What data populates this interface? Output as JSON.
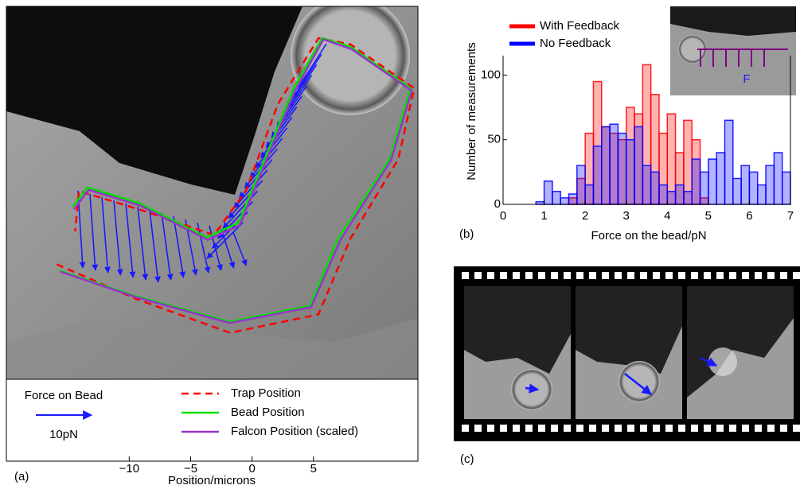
{
  "chart_data": [
    {
      "type": "line",
      "panel_label": "(a)",
      "xlabel": "Position/microns",
      "xlim": [
        -20,
        13.5
      ],
      "ylim": [
        -6,
        24.5
      ],
      "xticks": [
        {
          "value": -10,
          "label": "−10"
        },
        {
          "value": -5,
          "label": "−5"
        },
        0,
        5
      ],
      "scale_label": "Force on Bead",
      "scale_value_label": "10pN",
      "series": [
        {
          "name": "Trap Position",
          "color": "#ff0000",
          "dashed": true,
          "x": [
            -15.9,
            -9.5,
            -1.8,
            5.4,
            8.0,
            11.9,
            13.2,
            8.0,
            5.4,
            2.1,
            -0.5,
            -3.1,
            -8.9,
            -14.1,
            -14.4
          ],
          "values": [
            3.4,
            0.6,
            -2.2,
            -0.7,
            5.5,
            12.0,
            17.8,
            21.4,
            21.9,
            16.5,
            9.4,
            5.8,
            7.8,
            9.4,
            6.1
          ]
        },
        {
          "name": "Bead Position",
          "color": "#00e000",
          "dashed": false,
          "x": [
            -15.7,
            -9.5,
            -1.8,
            4.7,
            7.0,
            11.2,
            12.9,
            8.0,
            5.7,
            3.4,
            -1.1,
            -3.7,
            -9.2,
            -13.4,
            -14.6
          ],
          "values": [
            2.9,
            0.8,
            -1.3,
            0.0,
            5.5,
            12.0,
            17.8,
            21.2,
            21.9,
            17.8,
            6.8,
            5.6,
            8.4,
            9.7,
            8.1
          ]
        },
        {
          "name": "Falcon Position (scaled)",
          "color": "#9933cc",
          "dashed": false,
          "x": [
            -15.6,
            -9.4,
            -1.8,
            4.8,
            7.2,
            11.3,
            13.0,
            8.1,
            5.8,
            3.5,
            -1.0,
            -3.6,
            -9.1,
            -13.3,
            -14.5
          ],
          "values": [
            2.8,
            0.7,
            -1.4,
            -0.1,
            5.4,
            11.9,
            17.6,
            21.0,
            21.8,
            17.6,
            6.6,
            5.4,
            8.2,
            9.5,
            7.9
          ]
        }
      ]
    },
    {
      "type": "histogram",
      "panel_label": "(b)",
      "xlabel": "Force on the bead/pN",
      "ylabel": "Number of measurements",
      "inset_label": "F",
      "xlim": [
        0,
        7
      ],
      "ylim": [
        0,
        115
      ],
      "xticks": [
        0,
        1,
        2,
        3,
        4,
        5,
        6,
        7
      ],
      "yticks": [
        0,
        50,
        100
      ],
      "bins": [
        0,
        0.2,
        0.4,
        0.6,
        0.8,
        1.0,
        1.2,
        1.4,
        1.6,
        1.8,
        2.0,
        2.2,
        2.4,
        2.6,
        2.8,
        3.0,
        3.2,
        3.4,
        3.6,
        3.8,
        4.0,
        4.2,
        4.4,
        4.6,
        4.8,
        5.0,
        5.2,
        5.4,
        5.6,
        5.8,
        6.0,
        6.2,
        6.4,
        6.6,
        6.8,
        7.0
      ],
      "series": [
        {
          "name": "With Feedback",
          "color": "#ff0000",
          "values": [
            0,
            0,
            0,
            0,
            0,
            0,
            0,
            0,
            5,
            20,
            55,
            95,
            60,
            55,
            50,
            75,
            70,
            108,
            85,
            55,
            70,
            40,
            65,
            50,
            5,
            0,
            0,
            0,
            0,
            0,
            0,
            0,
            0,
            0,
            0
          ]
        },
        {
          "name": "No Feedback",
          "color": "#0000ff",
          "values": [
            0,
            0,
            0,
            0,
            2,
            18,
            10,
            5,
            8,
            30,
            15,
            45,
            60,
            62,
            55,
            50,
            60,
            30,
            25,
            15,
            10,
            15,
            10,
            35,
            25,
            35,
            40,
            65,
            20,
            30,
            25,
            15,
            30,
            40,
            25
          ]
        }
      ]
    }
  ],
  "film_strip": {
    "label": "(c)"
  }
}
